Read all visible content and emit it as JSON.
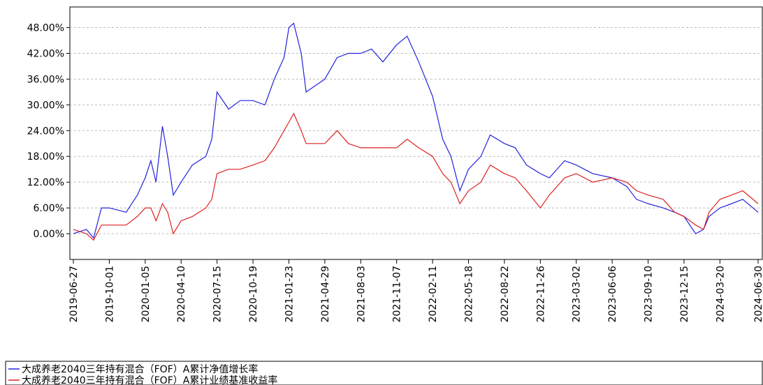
{
  "chart_data": {
    "type": "line",
    "x": [
      "2019-06-27",
      "2019-08-01",
      "2019-08-20",
      "2019-09-10",
      "2019-10-01",
      "2019-11-15",
      "2019-12-15",
      "2020-01-05",
      "2020-01-20",
      "2020-02-03",
      "2020-02-20",
      "2020-03-05",
      "2020-03-20",
      "2020-04-10",
      "2020-05-10",
      "2020-06-15",
      "2020-07-01",
      "2020-07-15",
      "2020-08-15",
      "2020-09-15",
      "2020-10-19",
      "2020-11-20",
      "2020-12-15",
      "2021-01-10",
      "2021-01-23",
      "2021-02-05",
      "2021-02-25",
      "2021-03-10",
      "2021-04-29",
      "2021-06-01",
      "2021-07-01",
      "2021-08-03",
      "2021-09-01",
      "2021-10-01",
      "2021-11-07",
      "2021-12-05",
      "2022-01-05",
      "2022-02-11",
      "2022-03-10",
      "2022-04-01",
      "2022-04-25",
      "2022-05-18",
      "2022-06-20",
      "2022-07-15",
      "2022-08-22",
      "2022-09-20",
      "2022-10-20",
      "2022-11-26",
      "2022-12-20",
      "2023-01-30",
      "2023-03-02",
      "2023-04-15",
      "2023-06-06",
      "2023-07-15",
      "2023-08-10",
      "2023-09-10",
      "2023-10-20",
      "2023-11-20",
      "2023-12-15",
      "2024-01-15",
      "2024-02-05",
      "2024-02-20",
      "2024-03-20",
      "2024-04-20",
      "2024-05-20",
      "2024-06-30"
    ],
    "series": [
      {
        "name": "大成养老2040三年持有混合（FOF）A累计净值增长率",
        "color": "#2222dd",
        "values": [
          0,
          1,
          -1,
          6,
          6,
          5,
          9,
          13,
          17,
          12,
          25,
          18,
          9,
          12,
          16,
          18,
          22,
          33,
          29,
          31,
          31,
          30,
          36,
          41,
          48,
          49,
          42,
          33,
          36,
          41,
          42,
          42,
          43,
          40,
          44,
          46,
          40,
          32,
          22,
          18,
          10,
          15,
          18,
          23,
          21,
          20,
          16,
          14,
          13,
          17,
          16,
          14,
          13,
          11,
          8,
          7,
          6,
          5,
          4,
          0,
          1,
          4,
          6,
          7,
          8,
          5
        ]
      },
      {
        "name": "大成养老2040三年持有混合（FOF）A累计业绩基准收益率",
        "color": "#dd2222",
        "values": [
          1,
          0,
          -1.5,
          2,
          2,
          2,
          4,
          6,
          6,
          3,
          7,
          5,
          0,
          3,
          4,
          6,
          8,
          14,
          15,
          15,
          16,
          17,
          20,
          24,
          26,
          28,
          24,
          21,
          21,
          24,
          21,
          20,
          20,
          20,
          20,
          22,
          20,
          18,
          14,
          12,
          7,
          10,
          12,
          16,
          14,
          13,
          10,
          6,
          9,
          13,
          14,
          12,
          13,
          12,
          10,
          9,
          8,
          5,
          4,
          2,
          1,
          5,
          8,
          9,
          10,
          7
        ]
      }
    ],
    "xlim": [
      "2019-06-27",
      "2024-06-30"
    ],
    "xticks": [
      "2019-06-27",
      "2019-10-01",
      "2020-01-05",
      "2020-04-10",
      "2020-07-15",
      "2020-10-19",
      "2021-01-23",
      "2021-04-29",
      "2021-08-03",
      "2021-11-07",
      "2022-02-11",
      "2022-05-18",
      "2022-08-22",
      "2022-11-26",
      "2023-03-02",
      "2023-06-06",
      "2023-09-10",
      "2023-12-15",
      "2024-03-20",
      "2024-06-30"
    ],
    "ylim": [
      -6,
      52.8
    ],
    "yticks": [
      {
        "value": 0,
        "label": "0.00%"
      },
      {
        "value": 6,
        "label": "6.00%"
      },
      {
        "value": 12,
        "label": "12.00%"
      },
      {
        "value": 18,
        "label": "18.00%"
      },
      {
        "value": 24,
        "label": "24.00%"
      },
      {
        "value": 30,
        "label": "30.00%"
      },
      {
        "value": 36,
        "label": "36.00%"
      },
      {
        "value": 42,
        "label": "42.00%"
      },
      {
        "value": 48,
        "label": "48.00%"
      }
    ],
    "grid": true
  }
}
